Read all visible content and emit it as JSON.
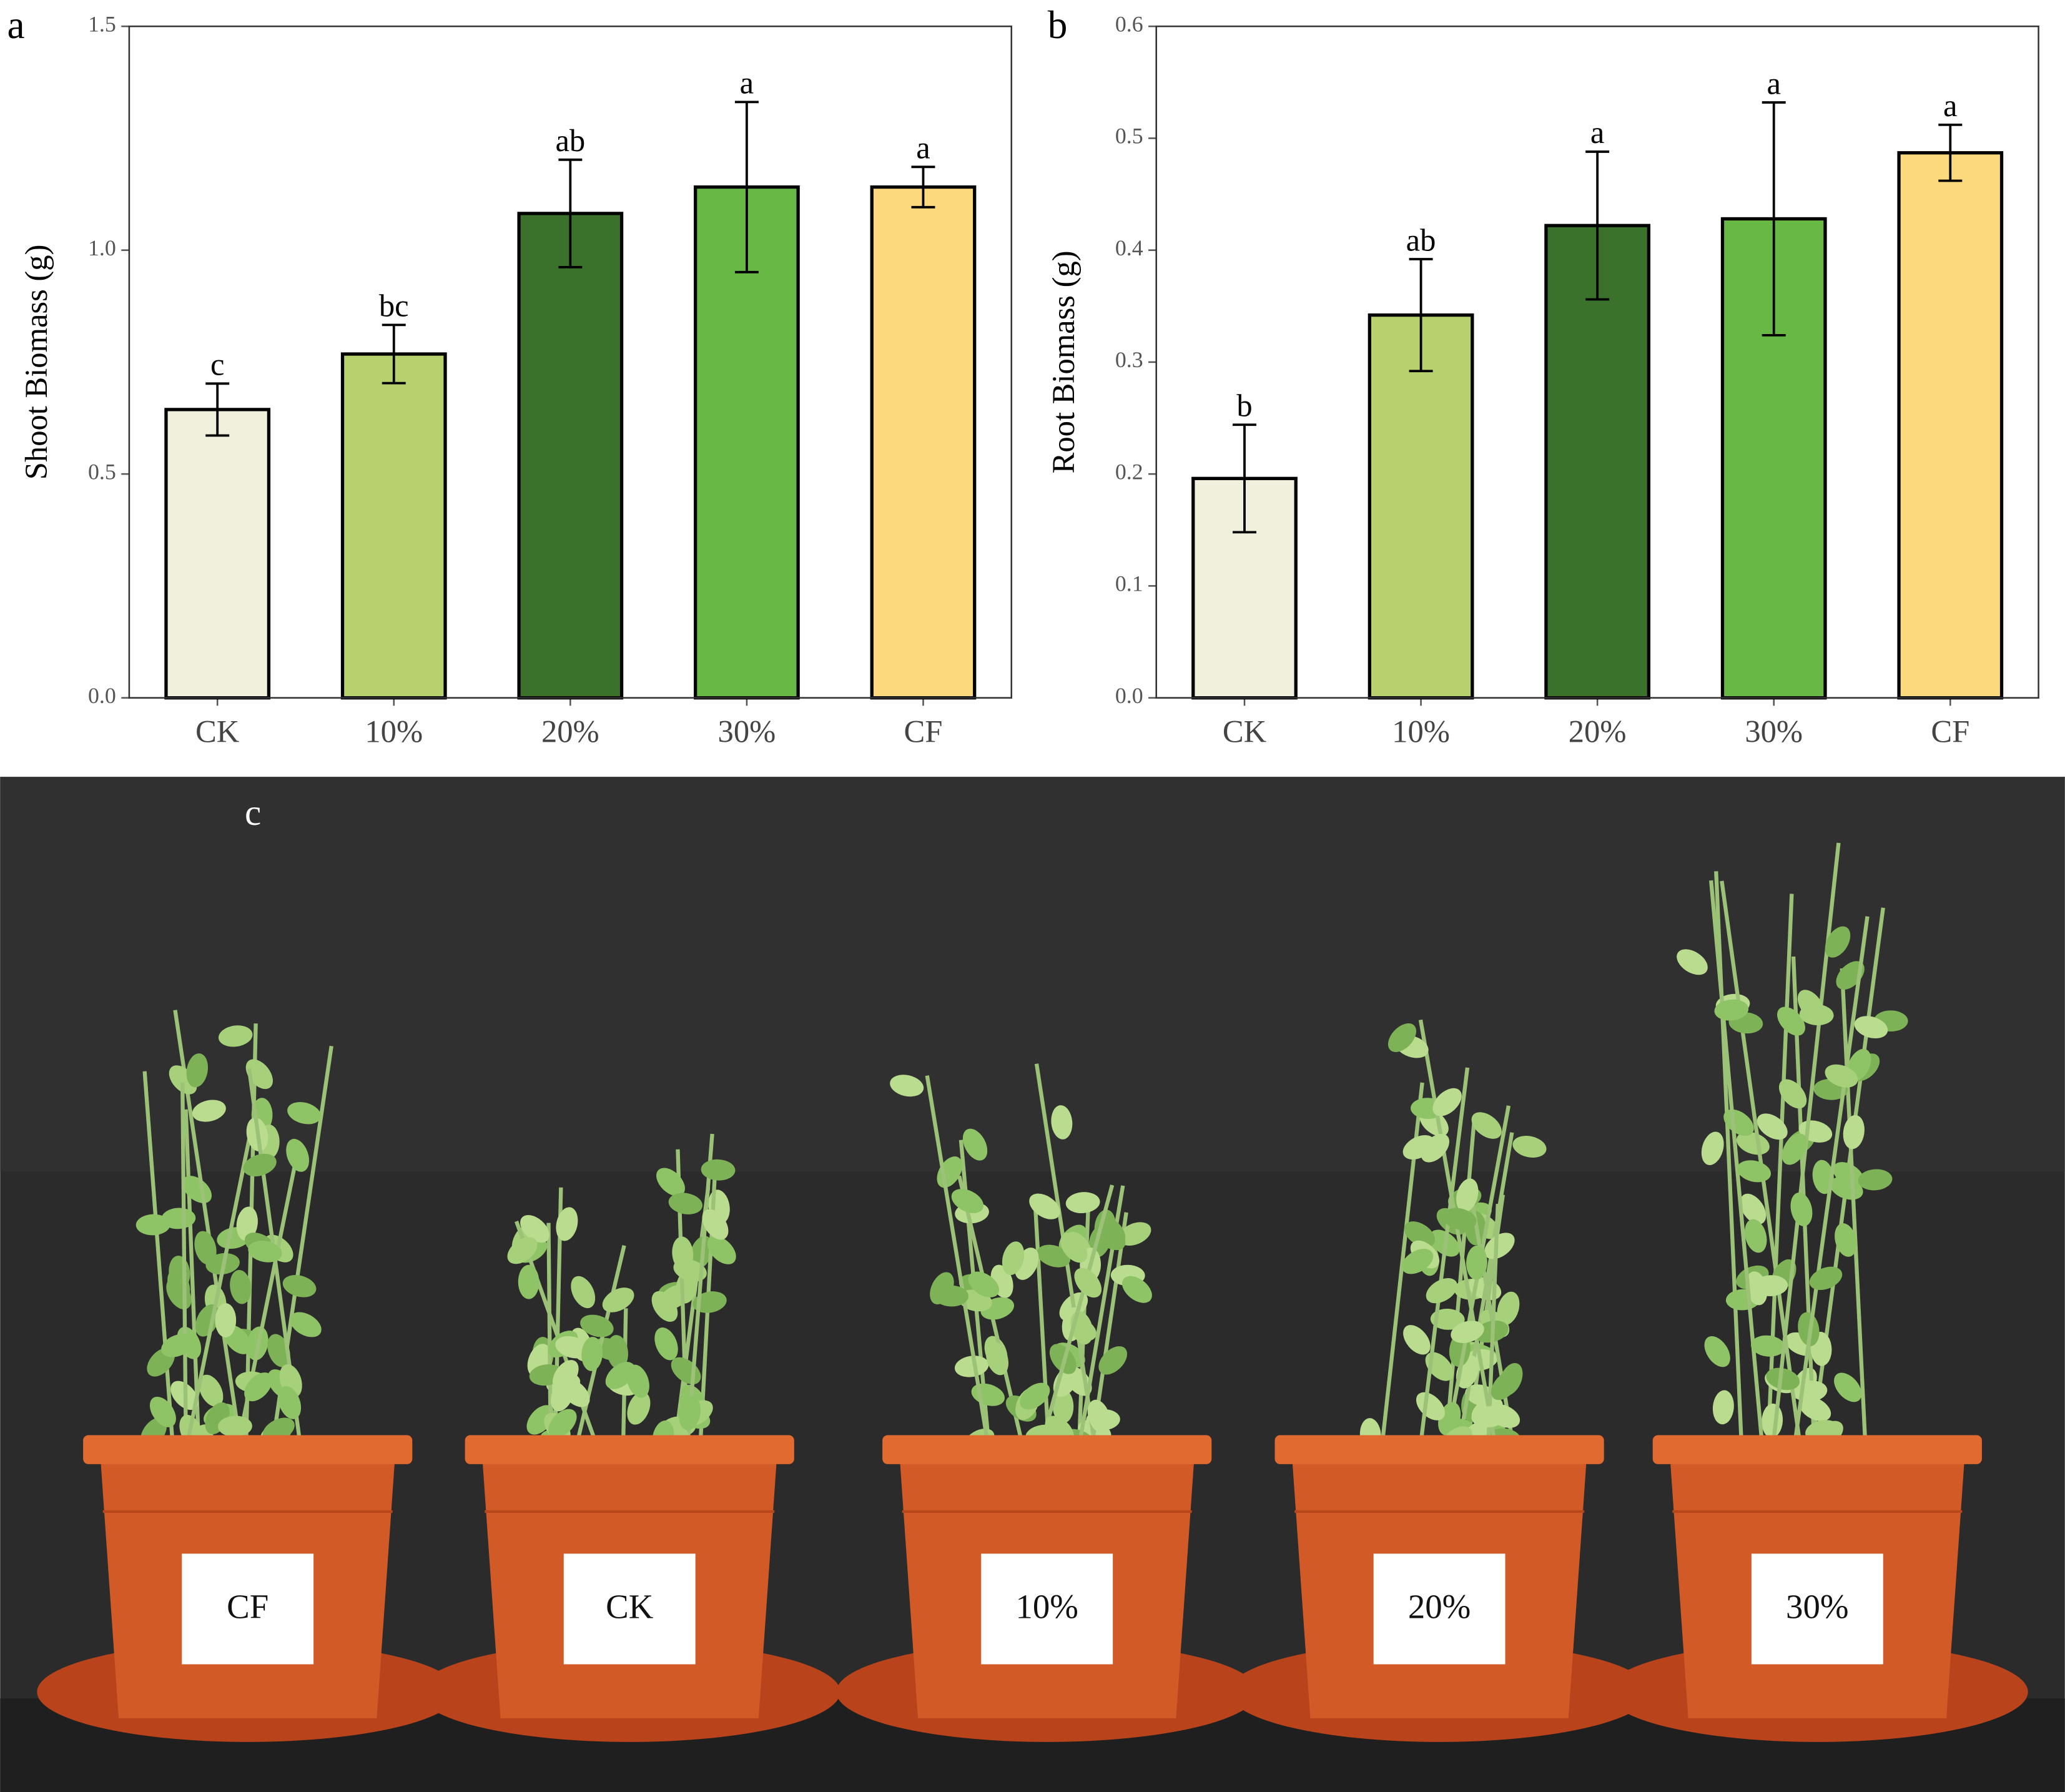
{
  "chart_data": [
    {
      "type": "bar",
      "panel_label": "a",
      "ylabel": "Shoot Biomass (g)",
      "categories": [
        "CK",
        "10%",
        "20%",
        "30%",
        "CF"
      ],
      "values": [
        0.644,
        0.768,
        1.082,
        1.141,
        1.141
      ],
      "errors": [
        0.058,
        0.065,
        0.12,
        0.19,
        0.045
      ],
      "significance": [
        "c",
        "bc",
        "ab",
        "a",
        "a"
      ],
      "colors": [
        "#f0f0dc",
        "#b6d16d",
        "#3b722b",
        "#68b846",
        "#fdd97d"
      ],
      "ylim": [
        0,
        1.5
      ],
      "yticks": [
        {
          "value": 0,
          "label": "0.0"
        },
        0.5,
        {
          "value": 1,
          "label": "1.0"
        },
        1.5
      ]
    },
    {
      "type": "bar",
      "panel_label": "b",
      "ylabel": "Root Biomass (g)",
      "categories": [
        "CK",
        "10%",
        "20%",
        "30%",
        "CF"
      ],
      "values": [
        0.196,
        0.342,
        0.422,
        0.428,
        0.487
      ],
      "errors": [
        0.048,
        0.05,
        0.066,
        0.104,
        0.025
      ],
      "significance": [
        "b",
        "ab",
        "a",
        "a",
        "a"
      ],
      "colors": [
        "#f0f0dc",
        "#b6d16d",
        "#3b722b",
        "#68b846",
        "#fdd97d"
      ],
      "ylim": [
        0,
        0.6
      ],
      "yticks": [
        {
          "value": 0,
          "label": "0.0"
        },
        0.1,
        0.2,
        0.3,
        0.4,
        0.5,
        0.6
      ]
    }
  ],
  "photo": {
    "panel_label": "c",
    "pot_labels": [
      "CF",
      "CK",
      "10%",
      "20%",
      "30%"
    ]
  }
}
